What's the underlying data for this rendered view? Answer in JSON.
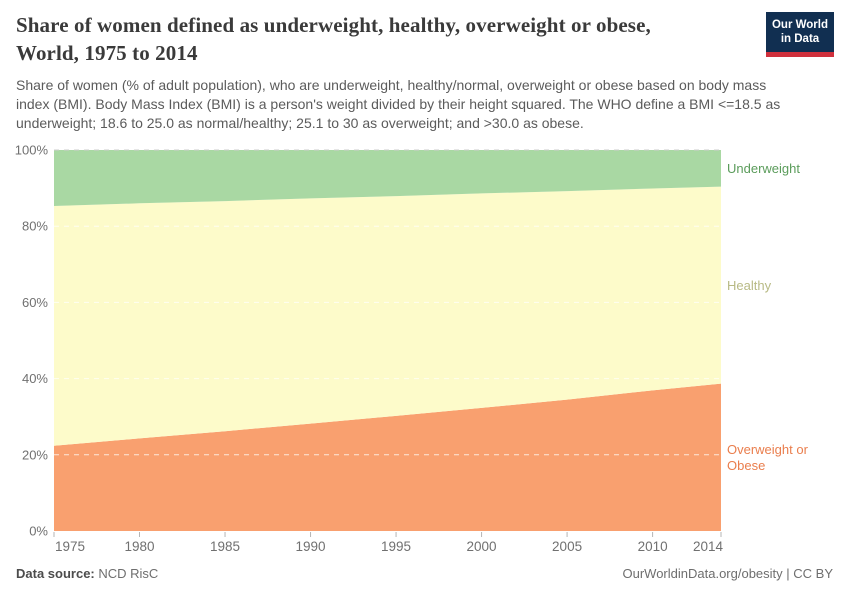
{
  "header": {
    "title_lines": [
      "Share of women defined as underweight, healthy, overweight or obese,",
      "World, 1975 to 2014"
    ],
    "subtitle_lines": [
      "Share of women (% of adult population), who are underweight, healthy/normal, overweight or obese based on body mass",
      "index (BMI). Body Mass Index (BMI) is a person's weight divided by their height squared. The WHO define a BMI <=18.5 as",
      "underweight; 18.6 to 25.0 as normal/healthy; 25.1 to 30 as overweight; and >30.0 as obese."
    ],
    "logo": {
      "line1": "Our World",
      "line2": "in Data",
      "bg_color": "#112f51",
      "bar_color": "#d0303c"
    }
  },
  "footer": {
    "datasource_label": "Data source:",
    "datasource_value": " NCD RisC",
    "credit": "OurWorldinData.org/obesity | CC BY"
  },
  "chart_data": {
    "type": "area",
    "stacked": true,
    "title": "Share of women defined as underweight, healthy, overweight or obese, World, 1975 to 2014",
    "x": [
      1975,
      1980,
      1985,
      1990,
      1995,
      2000,
      2005,
      2010,
      2014
    ],
    "series": [
      {
        "name": "Overweight or Obese",
        "label_lines": [
          "Overweight or",
          "Obese"
        ],
        "color": "#f9a06f",
        "label_color": "#ea7e4d",
        "values": [
          22.4,
          24.3,
          26.2,
          28.2,
          30.2,
          32.3,
          34.5,
          36.9,
          38.7
        ]
      },
      {
        "name": "Healthy",
        "label_lines": [
          "Healthy"
        ],
        "color": "#fdfbca",
        "label_color": "#b8ba85",
        "values": [
          62.9,
          61.7,
          60.4,
          59.1,
          57.7,
          56.3,
          54.7,
          53.0,
          51.7
        ]
      },
      {
        "name": "Underweight",
        "label_lines": [
          "Underweight"
        ],
        "color": "#a9d8a3",
        "label_color": "#5b9c5b",
        "values": [
          14.7,
          14.0,
          13.4,
          12.7,
          12.1,
          11.4,
          10.8,
          10.1,
          9.6
        ]
      }
    ],
    "xlabel": "",
    "ylabel": "",
    "ylim": [
      0,
      100
    ],
    "y_ticks": [
      0,
      20,
      40,
      60,
      80,
      100
    ],
    "y_tick_suffix": "%",
    "x_ticks": [
      1975,
      1980,
      1985,
      1990,
      1995,
      2000,
      2005,
      2010,
      2014
    ],
    "grid": "dashed-horizontal",
    "legend_position": "right-of-plot",
    "axis_label_color": "#707070",
    "tick_mark_color": "#b5b5b5",
    "gridline_color_over_area": "rgba(255,255,255,0.75)",
    "gridline_color_top": "#cdcdcd"
  }
}
